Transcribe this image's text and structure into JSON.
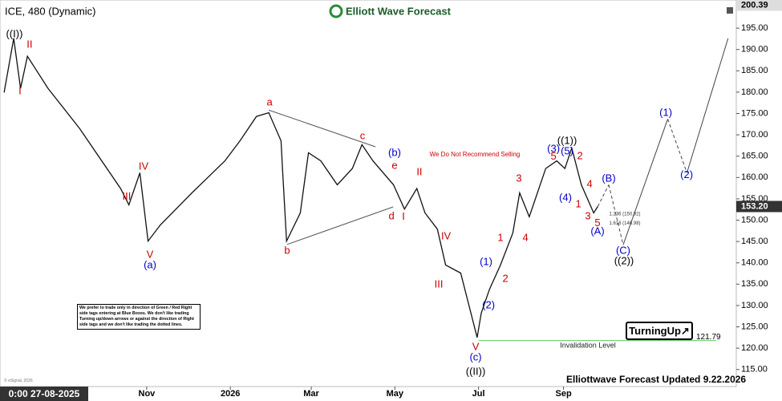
{
  "chart_data": {
    "type": "line",
    "title": "ICE, 480 (Dynamic)",
    "brand": "Elliott Wave Forecast",
    "start_label": "0:00 27-08-2025",
    "color": "#111111",
    "x": [
      -38,
      -31,
      -26,
      -21,
      -6,
      17,
      47,
      53,
      61,
      67,
      76,
      99,
      123,
      134,
      146,
      155,
      164,
      165,
      168,
      178,
      184,
      193,
      205,
      216,
      223,
      231,
      246,
      254,
      263,
      269,
      278,
      284,
      295,
      301,
      307,
      310,
      316,
      324,
      333,
      338,
      345,
      357,
      365,
      371,
      376,
      383,
      392,
      395
    ],
    "values": [
      179.9,
      192.6,
      180.9,
      188.4,
      180.9,
      171.5,
      157.4,
      153.6,
      161.1,
      145.1,
      148.9,
      156.4,
      163.9,
      168.6,
      174.3,
      175.2,
      168.6,
      162.1,
      145.1,
      151.7,
      165.8,
      163.9,
      158.3,
      162.1,
      167.7,
      163.9,
      158.3,
      152.6,
      157.4,
      151.7,
      147.9,
      139.5,
      137.6,
      130.1,
      122.5,
      128.2,
      133.8,
      139.5,
      147.0,
      156.4,
      150.8,
      162.1,
      163.9,
      162.1,
      166.9,
      158.3,
      151.7,
      153.2
    ],
    "projection": {
      "color": "#444444",
      "x": [
        395,
        403,
        413.5,
        446,
        460,
        490
      ],
      "values": [
        153.2,
        158.3,
        144.2,
        173.7,
        161.1,
        192.6
      ],
      "dashed": [
        true,
        true,
        false,
        true,
        false
      ]
    },
    "trendlines": [
      {
        "color": "#555555",
        "x": [
          155,
          232.8
        ],
        "values": [
          175.8,
          167.2
        ]
      },
      {
        "color": "#555555",
        "x": [
          168.4,
          245.7
        ],
        "values": [
          144.3,
          153.1
        ]
      }
    ],
    "xlim": [
      -41,
      496
    ],
    "ylim": [
      111,
      201.6
    ],
    "xticks": [
      {
        "value": 66,
        "label": "Nov"
      },
      {
        "value": 127,
        "label": "2026"
      },
      {
        "value": 186,
        "label": "Mar"
      },
      {
        "value": 247,
        "label": "May"
      },
      {
        "value": 308,
        "label": "Jul"
      },
      {
        "value": 370,
        "label": "Sep"
      }
    ],
    "yticks": [
      {
        "value": 115,
        "label": "115.00"
      },
      {
        "value": 120,
        "label": "120.00"
      },
      {
        "value": 125,
        "label": "125.00"
      },
      {
        "value": 130,
        "label": "130.00"
      },
      {
        "value": 135,
        "label": "135.00"
      },
      {
        "value": 140,
        "label": "140.00"
      },
      {
        "value": 145,
        "label": "145.00"
      },
      {
        "value": 150,
        "label": "150.00"
      },
      {
        "value": 155,
        "label": "155.00"
      },
      {
        "value": 160,
        "label": "160.00"
      },
      {
        "value": 165,
        "label": "165.00"
      },
      {
        "value": 170,
        "label": "170.00"
      },
      {
        "value": 175,
        "label": "175.00"
      },
      {
        "value": 180,
        "label": "180.00"
      },
      {
        "value": 185,
        "label": "185.00"
      },
      {
        "value": 190,
        "label": "190.00"
      },
      {
        "value": 195,
        "label": "195.00"
      }
    ],
    "last_price": {
      "value": 153.2,
      "label": "153.20"
    },
    "high_price": {
      "value": 200.39,
      "label": "200.39"
    },
    "invalidation": {
      "value": 121.79,
      "label": "121.79",
      "text": "Invalidation Level",
      "x_start": 308,
      "color": "#66cc66",
      "text_x": 387.8,
      "text_y": 120.6
    },
    "wave_labels": [
      {
        "text": "((I))",
        "x": -30.5,
        "y": 193.5,
        "color": "#000000"
      },
      {
        "text": "I",
        "x": -26.4,
        "y": 180.2,
        "color": "#cc0000"
      },
      {
        "text": "II",
        "x": -19.4,
        "y": 191.1,
        "color": "#cc0000"
      },
      {
        "text": "III",
        "x": 51.4,
        "y": 155.4,
        "color": "#cc0000"
      },
      {
        "text": "IV",
        "x": 63.7,
        "y": 162.5,
        "color": "#cc0000"
      },
      {
        "text": "V",
        "x": 68.4,
        "y": 141.8,
        "color": "#cc0000"
      },
      {
        "text": "(a)",
        "x": 68.4,
        "y": 139.4,
        "color": "#0000cc"
      },
      {
        "text": "a",
        "x": 155.6,
        "y": 177.5,
        "color": "#cc0000"
      },
      {
        "text": "b",
        "x": 168.4,
        "y": 142.8,
        "color": "#cc0000"
      },
      {
        "text": "c",
        "x": 223.4,
        "y": 169.6,
        "color": "#cc0000"
      },
      {
        "text": "(b)",
        "x": 246.8,
        "y": 165.7,
        "color": "#0000cc"
      },
      {
        "text": "e",
        "x": 246.8,
        "y": 162.7,
        "color": "#cc0000"
      },
      {
        "text": "d",
        "x": 244.5,
        "y": 150.8,
        "color": "#cc0000"
      },
      {
        "text": "I",
        "x": 253.3,
        "y": 150.7,
        "color": "#cc0000"
      },
      {
        "text": "II",
        "x": 264.9,
        "y": 161.2,
        "color": "#cc0000"
      },
      {
        "text": "III",
        "x": 279,
        "y": 134.9,
        "color": "#cc0000"
      },
      {
        "text": "IV",
        "x": 284.3,
        "y": 146.1,
        "color": "#cc0000"
      },
      {
        "text": "V",
        "x": 305.9,
        "y": 120.2,
        "color": "#cc0000"
      },
      {
        "text": "(c)",
        "x": 305.9,
        "y": 117.8,
        "color": "#0000cc"
      },
      {
        "text": "((II))",
        "x": 305.9,
        "y": 114.4,
        "color": "#000000"
      },
      {
        "text": "(1)",
        "x": 313.5,
        "y": 140.1,
        "color": "#0000cc"
      },
      {
        "text": "1",
        "x": 324,
        "y": 145.8,
        "color": "#cc0000"
      },
      {
        "text": "2",
        "x": 327.6,
        "y": 136.2,
        "color": "#cc0000"
      },
      {
        "text": "(2)",
        "x": 315.3,
        "y": 130,
        "color": "#0000cc"
      },
      {
        "text": "3",
        "x": 337.5,
        "y": 159.7,
        "color": "#cc0000"
      },
      {
        "text": "4",
        "x": 342.2,
        "y": 145.8,
        "color": "#cc0000"
      },
      {
        "text": "(3)",
        "x": 362.7,
        "y": 166.6,
        "color": "#0000cc"
      },
      {
        "text": "5",
        "x": 362.7,
        "y": 164.8,
        "color": "#cc0000"
      },
      {
        "text": "((1))",
        "x": 372.6,
        "y": 168.5,
        "color": "#000000"
      },
      {
        "text": "(5)",
        "x": 372.6,
        "y": 166.1,
        "color": "#0000cc"
      },
      {
        "text": "2",
        "x": 382,
        "y": 164.9,
        "color": "#cc0000"
      },
      {
        "text": "(4)",
        "x": 371.4,
        "y": 155.2,
        "color": "#0000cc"
      },
      {
        "text": "4",
        "x": 389,
        "y": 158.4,
        "color": "#cc0000"
      },
      {
        "text": "1",
        "x": 380.8,
        "y": 153.7,
        "color": "#cc0000"
      },
      {
        "text": "3",
        "x": 387.8,
        "y": 150.8,
        "color": "#cc0000"
      },
      {
        "text": "5",
        "x": 394.8,
        "y": 149.2,
        "color": "#cc0000"
      },
      {
        "text": "(A)",
        "x": 394.8,
        "y": 147.3,
        "color": "#0000cc"
      },
      {
        "text": "(B)",
        "x": 403,
        "y": 159.7,
        "color": "#0000cc"
      },
      {
        "text": "(C)",
        "x": 413.5,
        "y": 142.8,
        "color": "#0000cc"
      },
      {
        "text": "((2))",
        "x": 414.1,
        "y": 140.3,
        "color": "#000000"
      },
      {
        "text": "(1)",
        "x": 444.6,
        "y": 175.1,
        "color": "#0000cc"
      },
      {
        "text": "(2)",
        "x": 459.8,
        "y": 160.5,
        "color": "#0000cc"
      }
    ],
    "notes": [
      {
        "text": "We Do Not Recommend Selling",
        "x": 305.3,
        "y": 165.3,
        "color": "#cc0000",
        "size": 8
      },
      {
        "text": "1.236 (150.92)",
        "x": 414.7,
        "y": 151.4,
        "color": "#333333",
        "size": 6
      },
      {
        "text": "1.618 (146.98)",
        "x": 414.7,
        "y": 149.3,
        "color": "#333333",
        "size": 6
      }
    ],
    "disclaimer": "We prefer to trade only in direction of Green / Red Right side tags entering at Blue Boxes. We don't like trading Turning up/down arrows or against the direction of Right side tags and we don't like trading the dotted lines.",
    "badge": "TurningUp↗",
    "footer": "Elliottwave Forecast Updated 9.22.2026",
    "copyright": "© eSignal, 2026"
  }
}
